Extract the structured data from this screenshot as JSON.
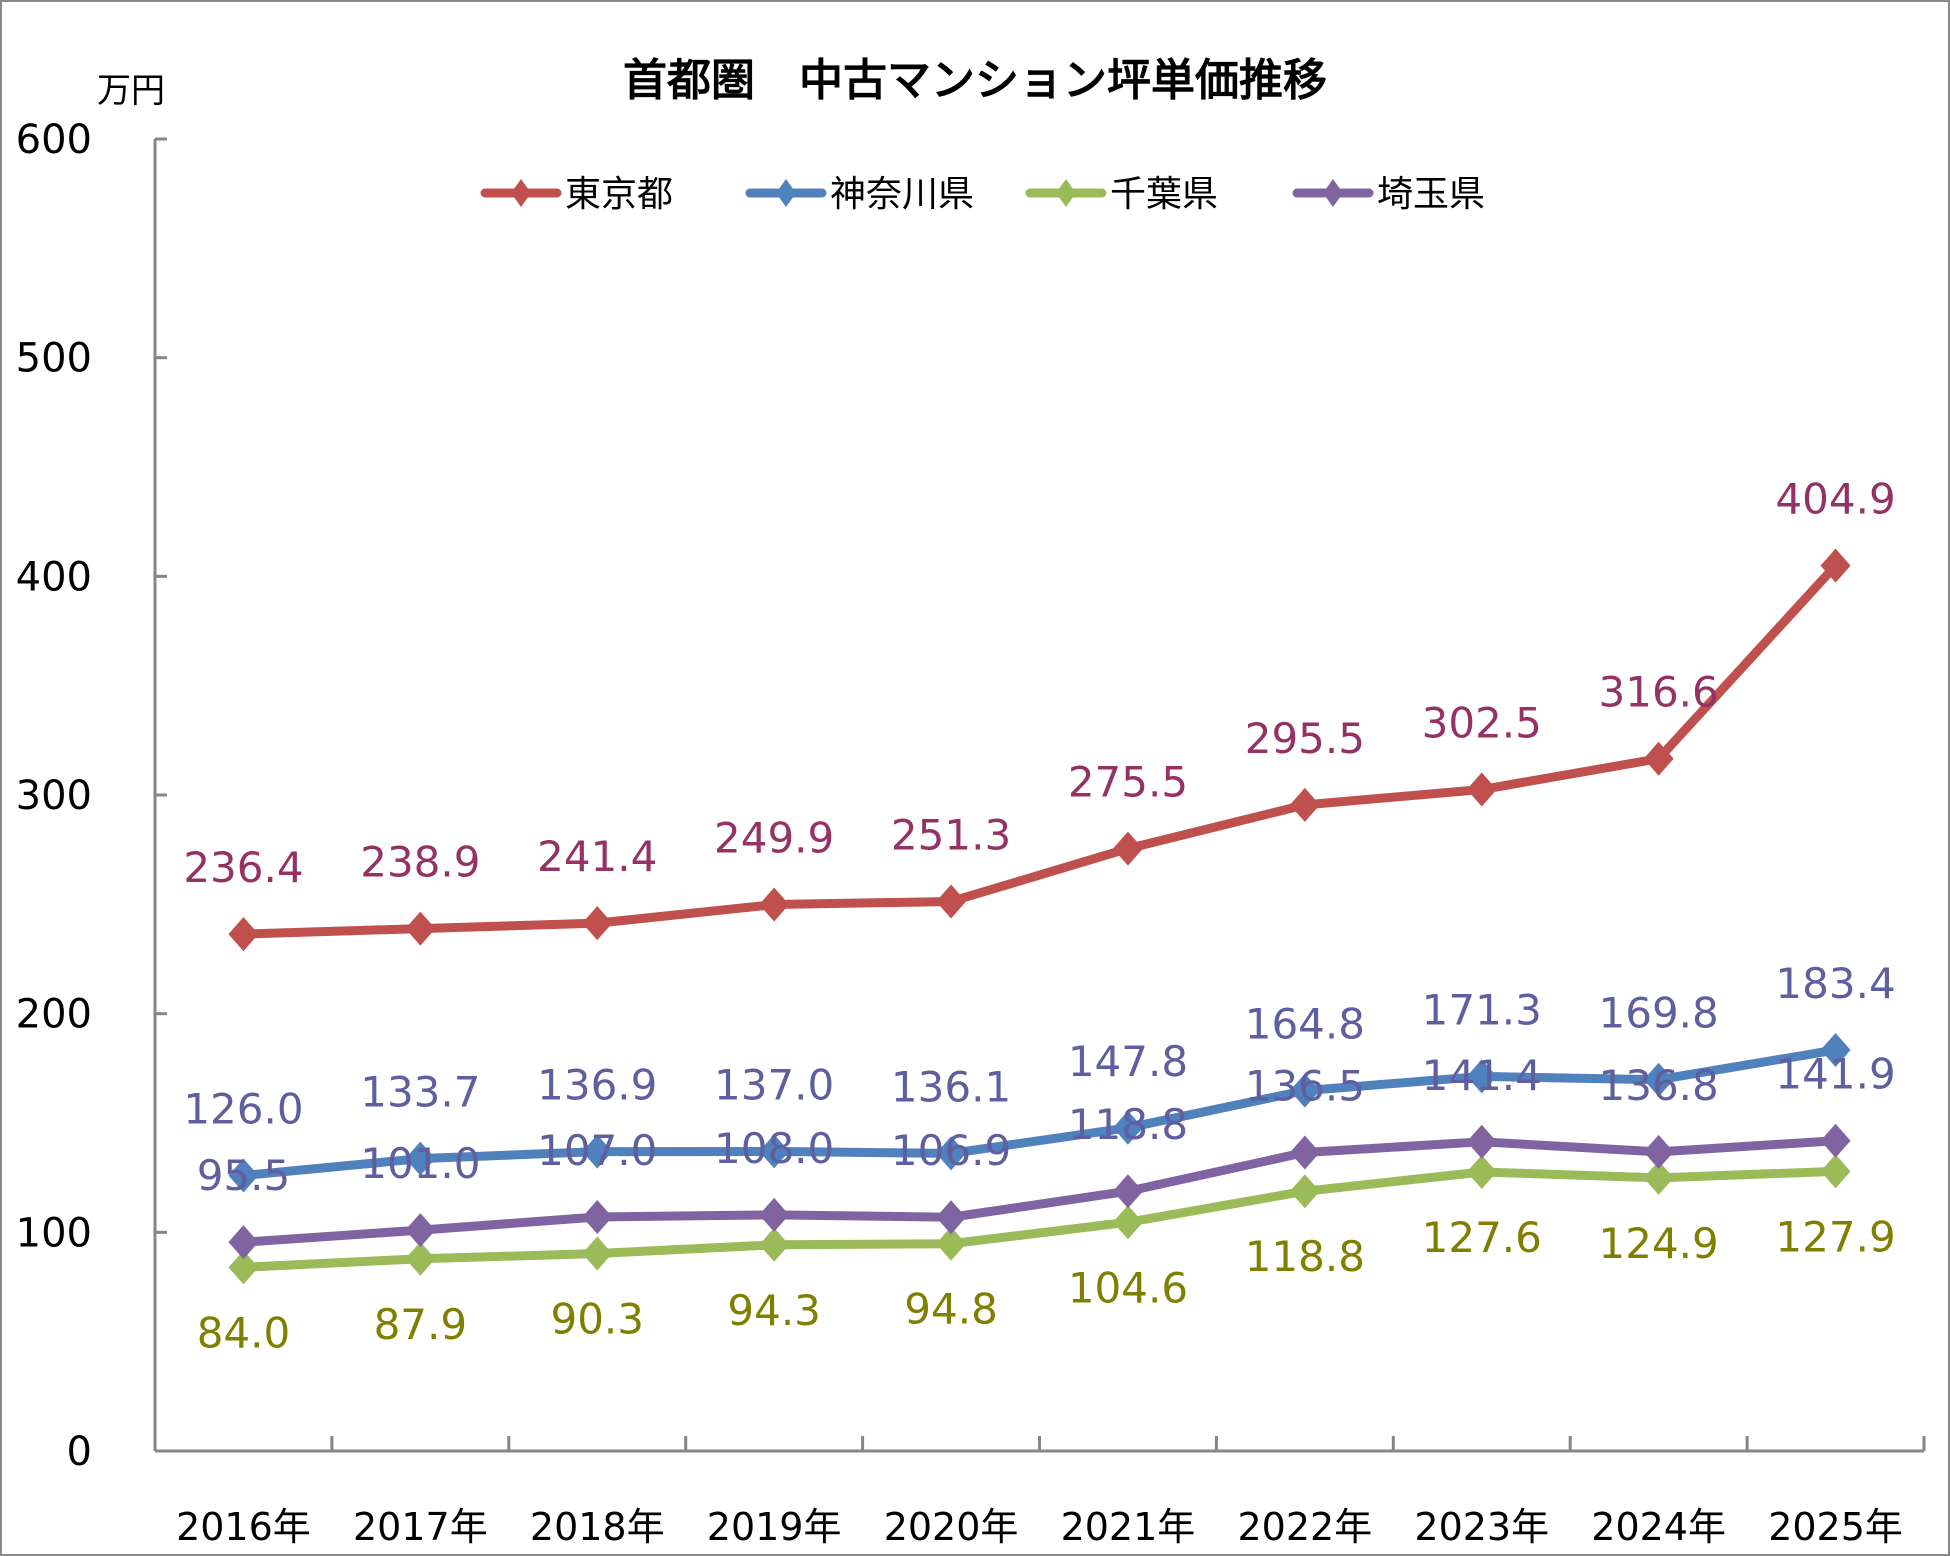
{
  "chart_data": {
    "type": "line",
    "title": "首都圏　中古マンション坪単価推移",
    "ylabel": "万円",
    "xlabel": "",
    "ylim": [
      0,
      600
    ],
    "yticks": [
      0,
      100,
      200,
      300,
      400,
      500,
      600
    ],
    "grid": false,
    "legend_position": "top-center",
    "categories": [
      "2016年",
      "2017年",
      "2018年",
      "2019年",
      "2020年",
      "2021年",
      "2022年",
      "2023年",
      "2024年",
      "2025年"
    ],
    "series": [
      {
        "name": "東京都",
        "color": "#c0504d",
        "label_color": "#953163",
        "label_position": "above",
        "values": [
          236.4,
          238.9,
          241.4,
          249.9,
          251.3,
          275.5,
          295.5,
          302.5,
          316.6,
          404.9
        ]
      },
      {
        "name": "神奈川県",
        "color": "#4f81bd",
        "label_color": "#5f5f9f",
        "label_position": "above",
        "values": [
          126.0,
          133.7,
          136.9,
          137.0,
          136.1,
          147.8,
          164.8,
          171.3,
          169.8,
          183.4
        ]
      },
      {
        "name": "千葉県",
        "color": "#9bbb59",
        "label_color": "#7f7f00",
        "label_position": "below",
        "values": [
          84.0,
          87.9,
          90.3,
          94.3,
          94.8,
          104.6,
          118.8,
          127.6,
          124.9,
          127.9
        ]
      },
      {
        "name": "埼玉県",
        "color": "#8064a2",
        "label_color": "#5f5f9f",
        "label_position": "above",
        "values": [
          95.5,
          101.0,
          107.0,
          108.0,
          106.9,
          118.8,
          136.5,
          141.4,
          136.8,
          141.9
        ]
      }
    ]
  }
}
